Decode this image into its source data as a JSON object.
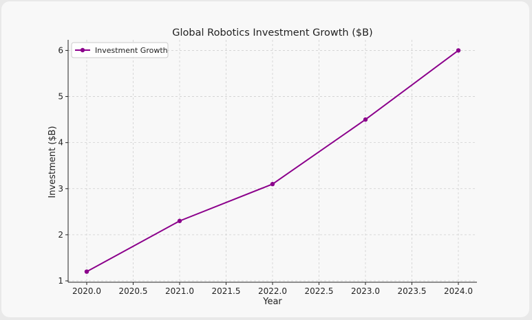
{
  "chart_data": {
    "type": "line",
    "title": "Global Robotics Investment Growth ($B)",
    "xlabel": "Year",
    "ylabel": "Investment ($B)",
    "x": [
      2020,
      2021,
      2022,
      2023,
      2024
    ],
    "series": [
      {
        "name": "Investment Growth",
        "values": [
          1.2,
          2.3,
          3.1,
          4.5,
          6.0
        ],
        "color": "#8b008b",
        "marker": "circle"
      }
    ],
    "xlim": [
      2019.8,
      2024.2
    ],
    "ylim": [
      0.97,
      6.23
    ],
    "x_ticks": [
      2020.0,
      2020.5,
      2021.0,
      2021.5,
      2022.0,
      2022.5,
      2023.0,
      2023.5,
      2024.0
    ],
    "x_tick_labels": [
      "2020.0",
      "2020.5",
      "2021.0",
      "2021.5",
      "2022.0",
      "2022.5",
      "2023.0",
      "2023.5",
      "2024.0"
    ],
    "y_ticks": [
      1,
      2,
      3,
      4,
      5,
      6
    ],
    "y_tick_labels": [
      "1",
      "2",
      "3",
      "4",
      "5",
      "6"
    ],
    "grid": true,
    "legend_position": "top-left"
  }
}
